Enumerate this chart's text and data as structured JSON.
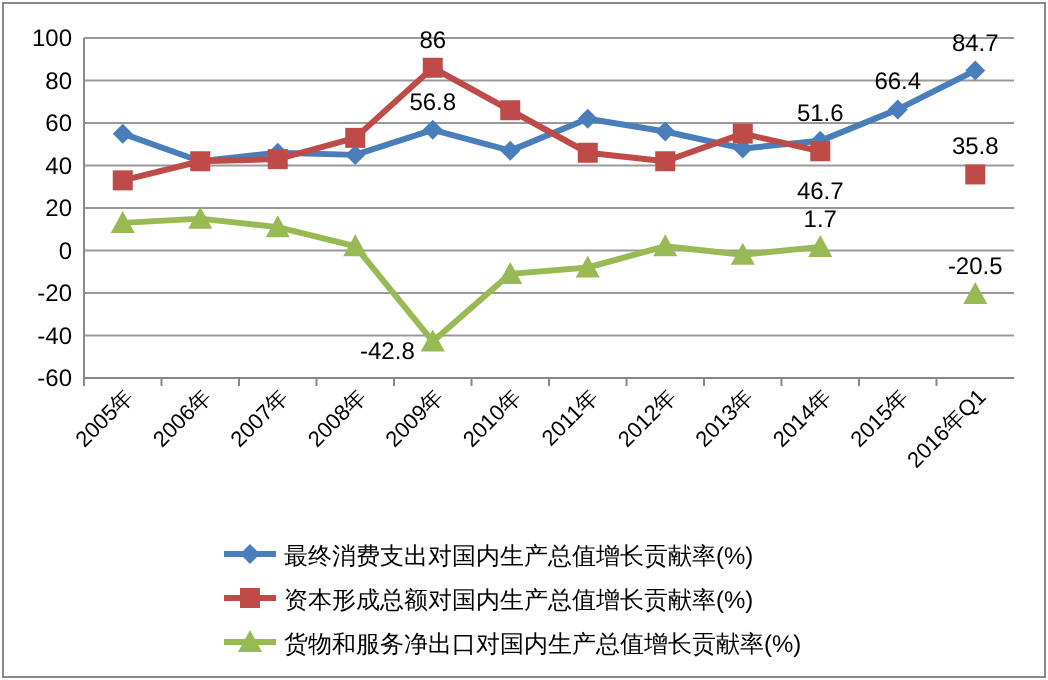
{
  "chart_data": {
    "type": "line",
    "categories": [
      "2005年",
      "2006年",
      "2007年",
      "2008年",
      "2009年",
      "2010年",
      "2011年",
      "2012年",
      "2013年",
      "2014年",
      "2015年",
      "2016年Q1"
    ],
    "series": [
      {
        "name": "最终消费支出对国内生产总值增长贡献率(%)",
        "color": "#4a7ebb",
        "marker": "diamond",
        "values": [
          55,
          42,
          46,
          45,
          56.8,
          47,
          62,
          56,
          48,
          51.6,
          66.4,
          84.7
        ],
        "value_labels": [
          null,
          null,
          null,
          null,
          "56.8",
          null,
          null,
          null,
          null,
          "51.6",
          "66.4",
          "84.7"
        ]
      },
      {
        "name": "资本形成总额对国内生产总值增长贡献率(%)",
        "color": "#be4b48",
        "marker": "square",
        "values": [
          33,
          42,
          43,
          53,
          86,
          66,
          46,
          42,
          55,
          46.7,
          null,
          35.8
        ],
        "value_labels": [
          null,
          null,
          null,
          null,
          "86",
          null,
          null,
          null,
          null,
          "46.7",
          null,
          "35.8"
        ]
      },
      {
        "name": "货物和服务净出口对国内生产总值增长贡献率(%)",
        "color": "#98b954",
        "marker": "triangle",
        "values": [
          13,
          15,
          11,
          2,
          -42.8,
          -11,
          -8,
          2,
          -2,
          1.7,
          null,
          -20.5
        ],
        "value_labels": [
          null,
          null,
          null,
          null,
          "-42.8",
          null,
          null,
          null,
          null,
          "1.7",
          null,
          "-20.5"
        ]
      }
    ],
    "ylim": [
      -60,
      100
    ],
    "yticks": [
      -60,
      -40,
      -20,
      0,
      20,
      40,
      60,
      80,
      100
    ],
    "grid": "y",
    "legend": "bottom",
    "line_style": "solid"
  }
}
